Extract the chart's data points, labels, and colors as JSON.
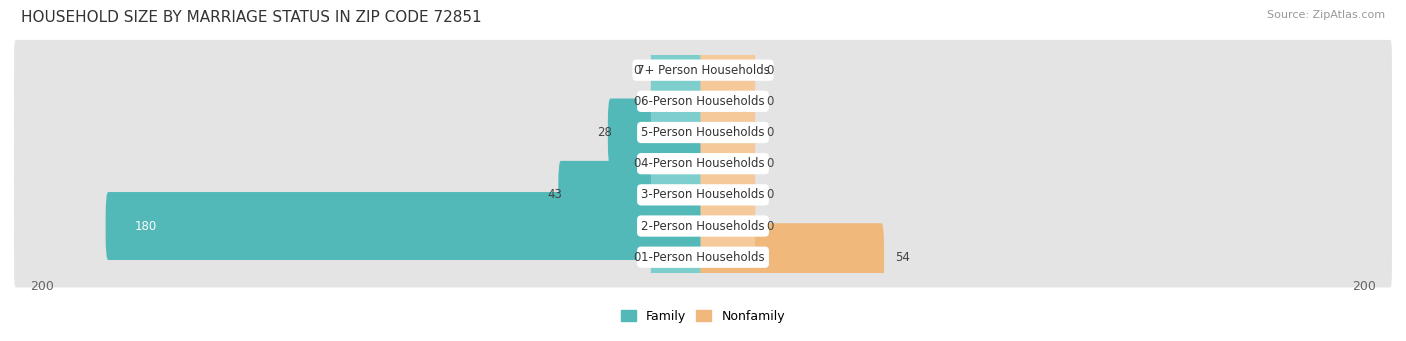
{
  "title": "HOUSEHOLD SIZE BY MARRIAGE STATUS IN ZIP CODE 72851",
  "source": "Source: ZipAtlas.com",
  "categories": [
    "1-Person Households",
    "2-Person Households",
    "3-Person Households",
    "4-Person Households",
    "5-Person Households",
    "6-Person Households",
    "7+ Person Households"
  ],
  "family_values": [
    0,
    180,
    43,
    0,
    28,
    0,
    0
  ],
  "nonfamily_values": [
    54,
    0,
    0,
    0,
    0,
    0,
    0
  ],
  "family_color": "#52B8B8",
  "nonfamily_color": "#F0B87A",
  "stub_family_color": "#7ECECE",
  "stub_nonfamily_color": "#F5C99A",
  "xlim": 200,
  "bar_height": 0.58,
  "stub_size": 15,
  "row_bg_color": "#E4E4E4",
  "title_fontsize": 11,
  "source_fontsize": 8,
  "label_fontsize": 8.5,
  "value_fontsize": 8.5,
  "axis_label_fontsize": 9,
  "legend_fontsize": 9
}
